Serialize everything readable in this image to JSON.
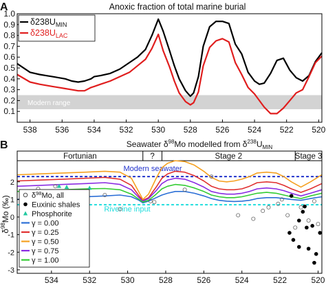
{
  "chart_data": [
    {
      "type": "line",
      "panel_letter": "A",
      "title": "Anoxic fraction of total marine burial",
      "xlabel": "",
      "ylabel": "",
      "xlim": [
        538.8,
        519.8
      ],
      "ylim": [
        0.0,
        1.0
      ],
      "x_reversed": true,
      "x_ticks": [
        538,
        536,
        534,
        532,
        530,
        528,
        526,
        524,
        522,
        520
      ],
      "y_ticks": [
        0.1,
        0.2,
        0.3,
        0.4,
        0.5,
        0.6,
        0.7,
        0.8,
        0.9,
        1.0
      ],
      "shaded_band": {
        "label": "Modern range",
        "y_range": [
          0.12,
          0.25
        ],
        "color": "#d3d3d3"
      },
      "legend_position": "top-left",
      "series": [
        {
          "name": "δ238U",
          "subscript": "MIN",
          "color": "#000000",
          "x": [
            538.8,
            538,
            537.4,
            537,
            536.6,
            536.2,
            535.8,
            535.4,
            535,
            534.6,
            534.2,
            534,
            533.6,
            533,
            532.4,
            531.8,
            531.3,
            530.8,
            530.4,
            530,
            529.7,
            529.3,
            529,
            528.7,
            528.3,
            528,
            527.8,
            527.5,
            527.2,
            526.8,
            526.4,
            526,
            525.6,
            525.2,
            524.8,
            524.4,
            524,
            523.7,
            523.4,
            523,
            522.6,
            522.2,
            521.8,
            521.4,
            521,
            520.6,
            520.2,
            519.8
          ],
          "y": [
            0.54,
            0.46,
            0.44,
            0.43,
            0.42,
            0.41,
            0.4,
            0.38,
            0.37,
            0.38,
            0.4,
            0.42,
            0.43,
            0.45,
            0.49,
            0.55,
            0.6,
            0.67,
            0.8,
            0.95,
            0.84,
            0.66,
            0.52,
            0.4,
            0.29,
            0.24,
            0.27,
            0.42,
            0.7,
            0.88,
            0.93,
            0.93,
            0.91,
            0.72,
            0.63,
            0.46,
            0.38,
            0.35,
            0.36,
            0.45,
            0.57,
            0.59,
            0.48,
            0.41,
            0.38,
            0.43,
            0.56,
            0.64
          ]
        },
        {
          "name": "δ238U",
          "subscript": "LAC",
          "color": "#e01e1e",
          "x": [
            538.8,
            538,
            537.4,
            537,
            536.6,
            536.2,
            535.8,
            535.4,
            535,
            534.6,
            534.2,
            534,
            533.6,
            533,
            532.4,
            531.8,
            531.3,
            530.8,
            530.4,
            530,
            529.7,
            529.3,
            529,
            528.7,
            528.3,
            528,
            527.8,
            527.5,
            527.2,
            526.8,
            526.4,
            526,
            525.6,
            525.2,
            524.8,
            524.4,
            524,
            523.7,
            523.4,
            523,
            522.6,
            522.2,
            521.8,
            521.4,
            521,
            520.6,
            520.2,
            519.8
          ],
          "y": [
            0.44,
            0.37,
            0.35,
            0.34,
            0.33,
            0.32,
            0.31,
            0.3,
            0.29,
            0.29,
            0.32,
            0.33,
            0.35,
            0.38,
            0.42,
            0.46,
            0.52,
            0.58,
            0.68,
            0.81,
            0.66,
            0.51,
            0.38,
            0.27,
            0.19,
            0.16,
            0.18,
            0.28,
            0.52,
            0.69,
            0.75,
            0.77,
            0.74,
            0.55,
            0.44,
            0.32,
            0.26,
            0.2,
            0.14,
            0.08,
            0.08,
            0.13,
            0.2,
            0.27,
            0.3,
            0.42,
            0.55,
            0.61
          ]
        }
      ]
    },
    {
      "type": "line",
      "panel_letter": "B",
      "title": "Seawater δ98Mo modelled from δ238U",
      "title_parts": {
        "prefix": "Seawater δ",
        "sup1": "98",
        "mid": "Mo modelled from δ",
        "sup2": "238",
        "base2": "U",
        "sub": "MIN"
      },
      "xlabel": "",
      "ylabel": "δ98Mo (‰)",
      "ylabel_parts": {
        "delta": "δ",
        "sup": "98",
        "base": "Mo (‰)"
      },
      "xlim": [
        535.8,
        519.8
      ],
      "ylim": [
        -3.2,
        3.2
      ],
      "x_reversed": true,
      "x_ticks": [
        534,
        532,
        530,
        528,
        526,
        524,
        522,
        520
      ],
      "y_ticks": [
        -3,
        -2,
        -1,
        0,
        1,
        2
      ],
      "stages": [
        {
          "label": "Fortunian",
          "from": 535.8,
          "to": 529.2
        },
        {
          "label": "?",
          "from": 529.2,
          "to": 528.2
        },
        {
          "label": "Stage 2",
          "from": 528.2,
          "to": 521.2
        },
        {
          "label": "Stage 3",
          "from": 521.2,
          "to": 519.8
        }
      ],
      "reference_lines": [
        {
          "label": "Modern seawater",
          "y": 2.3,
          "color": "#2233cc"
        },
        {
          "label": "Riverine input",
          "y": 0.7,
          "color": "#22dddd"
        }
      ],
      "legend_position": "bottom-left",
      "legend": [
        {
          "label": "δ98Mo, all",
          "label_parts": {
            "delta": "δ",
            "sup": "98",
            "base": "Mo, all"
          },
          "marker": "open-circle"
        },
        {
          "label": "Euxinic shales",
          "marker": "filled-circle"
        },
        {
          "label": "Phosphorite",
          "marker": "triangle"
        },
        {
          "label": "γ = 0.00",
          "color": "#2b6fd6"
        },
        {
          "label": "γ = 0.25",
          "color": "#e03030"
        },
        {
          "label": "γ = 0.50",
          "color": "#f5a020"
        },
        {
          "label": "γ = 0.75",
          "color": "#8a2be2"
        },
        {
          "label": "γ = 1.00",
          "color": "#33cc33"
        }
      ],
      "series": [
        {
          "name": "γ = 0.00",
          "color": "#2b6fd6",
          "x": [
            535.8,
            534.6,
            533.4,
            532.2,
            531.2,
            530.4,
            529.8,
            529.4,
            529.2,
            528.9,
            528.5,
            528.2,
            527.9,
            527.5,
            527.0,
            526.5,
            526.0,
            525.6,
            525.2,
            524.8,
            524.4,
            524.0,
            523.6,
            523.2,
            522.7,
            522.2,
            521.8,
            521.4,
            520.9,
            520.4,
            519.8
          ],
          "y": [
            1.0,
            1.05,
            1.1,
            1.15,
            1.2,
            1.25,
            1.15,
            0.95,
            0.8,
            0.9,
            1.1,
            1.25,
            1.35,
            1.45,
            1.45,
            1.35,
            1.2,
            1.05,
            0.95,
            0.9,
            0.88,
            0.9,
            0.95,
            1.05,
            1.1,
            1.1,
            1.05,
            1.0,
            0.95,
            1.05,
            1.15
          ]
        },
        {
          "name": "γ = 0.25",
          "color": "#e03030",
          "x": [
            535.8,
            534.6,
            533.4,
            532.2,
            531.2,
            530.4,
            529.8,
            529.4,
            529.2,
            528.9,
            528.5,
            528.2,
            527.9,
            527.5,
            527.0,
            526.5,
            526.0,
            525.6,
            525.2,
            524.8,
            524.4,
            524.0,
            523.6,
            523.2,
            522.7,
            522.2,
            521.8,
            521.4,
            520.9,
            520.4,
            519.8
          ],
          "y": [
            2.05,
            2.1,
            2.15,
            2.2,
            2.25,
            2.15,
            1.8,
            1.2,
            0.95,
            1.1,
            1.7,
            2.2,
            2.45,
            2.6,
            2.55,
            2.35,
            2.05,
            1.75,
            1.6,
            1.55,
            1.55,
            1.6,
            1.75,
            1.95,
            2.0,
            1.95,
            1.8,
            1.6,
            1.4,
            1.6,
            1.9
          ]
        },
        {
          "name": "γ = 0.50",
          "color": "#f5a020",
          "x": [
            535.8,
            534.6,
            533.4,
            532.2,
            531.2,
            530.4,
            529.8,
            529.4,
            529.2,
            528.9,
            528.5,
            528.2,
            527.9,
            527.5,
            527.0,
            526.5,
            526.0,
            525.6,
            525.2,
            524.8,
            524.4,
            524.0,
            523.6,
            523.2,
            522.7,
            522.2,
            521.8,
            521.4,
            520.9,
            520.4,
            519.8
          ],
          "y": [
            2.4,
            2.45,
            2.5,
            2.55,
            2.6,
            2.55,
            2.2,
            1.4,
            1.0,
            1.3,
            2.2,
            2.8,
            3.05,
            3.2,
            3.15,
            2.95,
            2.6,
            2.25,
            2.05,
            2.0,
            2.05,
            2.15,
            2.3,
            2.5,
            2.55,
            2.5,
            2.3,
            2.0,
            1.7,
            2.0,
            2.4
          ]
        },
        {
          "name": "γ = 0.75",
          "color": "#8a2be2",
          "x": [
            535.8,
            534.6,
            533.4,
            532.2,
            531.2,
            530.4,
            529.8,
            529.4,
            529.2,
            528.9,
            528.5,
            528.2,
            527.9,
            527.5,
            527.0,
            526.5,
            526.0,
            525.6,
            525.2,
            524.8,
            524.4,
            524.0,
            523.6,
            523.2,
            522.7,
            522.2,
            521.8,
            521.4,
            520.9,
            520.4,
            519.8
          ],
          "y": [
            1.75,
            1.8,
            1.85,
            1.9,
            1.95,
            1.85,
            1.55,
            1.1,
            0.9,
            1.05,
            1.5,
            1.9,
            2.1,
            2.2,
            2.15,
            1.95,
            1.7,
            1.45,
            1.35,
            1.3,
            1.3,
            1.35,
            1.45,
            1.6,
            1.65,
            1.6,
            1.5,
            1.35,
            1.2,
            1.35,
            1.55
          ]
        },
        {
          "name": "γ = 1.00",
          "color": "#33cc33",
          "x": [
            535.8,
            534.6,
            533.4,
            532.2,
            531.2,
            530.4,
            529.8,
            529.4,
            529.2,
            528.9,
            528.5,
            528.2,
            527.9,
            527.5,
            527.0,
            526.5,
            526.0,
            525.6,
            525.2,
            524.8,
            524.4,
            524.0,
            523.6,
            523.2,
            522.7,
            522.2,
            521.8,
            521.4,
            520.9,
            520.4,
            519.8
          ],
          "y": [
            1.45,
            1.5,
            1.55,
            1.6,
            1.62,
            1.55,
            1.3,
            1.0,
            0.85,
            0.95,
            1.3,
            1.6,
            1.75,
            1.85,
            1.8,
            1.65,
            1.45,
            1.25,
            1.15,
            1.1,
            1.1,
            1.15,
            1.25,
            1.35,
            1.4,
            1.35,
            1.25,
            1.15,
            1.05,
            1.2,
            1.35
          ]
        }
      ],
      "points": [
        {
          "set": "open",
          "x": [
            534.7,
            534.3,
            533.8,
            532.5,
            531.2,
            530.4,
            528.8,
            528.6,
            527.0,
            525.6,
            524.2,
            523.4,
            522.9,
            522.6,
            522.1,
            521.9,
            521.6,
            521.2,
            520.9,
            520.5,
            520.2,
            520.0
          ],
          "y": [
            1.6,
            1.35,
            1.75,
            1.45,
            1.25,
            0.45,
            0.9,
            0.85,
            1.55,
            2.3,
            0.1,
            -0.1,
            0.35,
            0.55,
            0.75,
            1.0,
            0.1,
            -0.6,
            0.55,
            -0.2,
            0.9,
            -0.4
          ]
        },
        {
          "set": "filled",
          "x": [
            521.5,
            521.3,
            521.0,
            520.8,
            520.6,
            520.5,
            520.3,
            520.2,
            520.1,
            519.9,
            521.4,
            520.7,
            521.0
          ],
          "y": [
            -0.9,
            -1.3,
            -0.2,
            0.3,
            -0.6,
            -1.8,
            -0.5,
            -2.6,
            -2.1,
            -0.9,
            1.2,
            0.6,
            -1.7
          ]
        },
        {
          "set": "triangle",
          "x": [
            533.6,
            533.2,
            532.0
          ],
          "y": [
            1.75,
            1.7,
            1.65
          ]
        }
      ]
    }
  ]
}
